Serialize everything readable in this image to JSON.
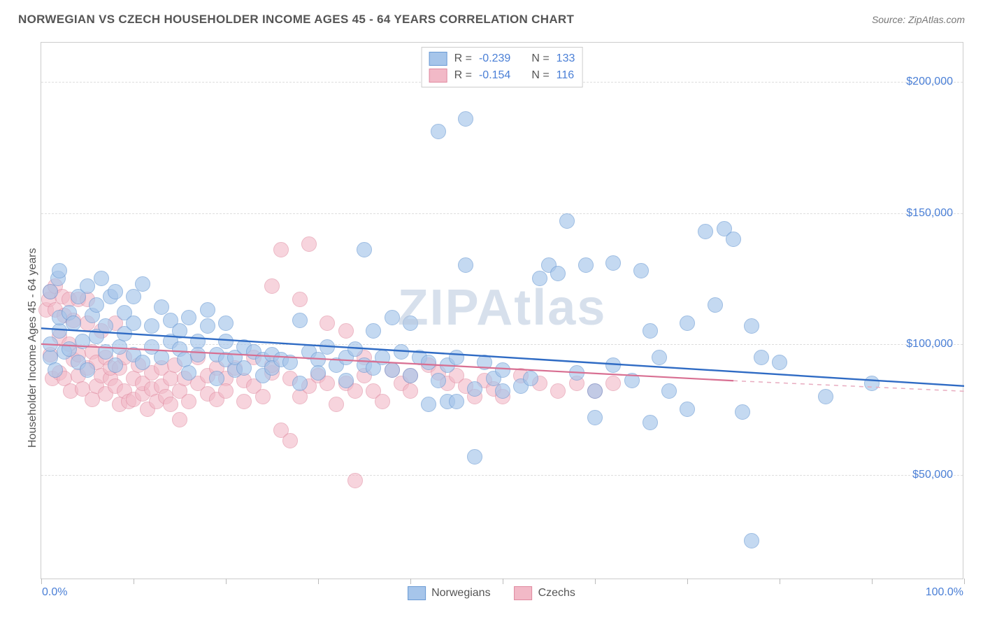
{
  "header": {
    "title": "NORWEGIAN VS CZECH HOUSEHOLDER INCOME AGES 45 - 64 YEARS CORRELATION CHART",
    "source": "Source: ZipAtlas.com"
  },
  "chart": {
    "type": "scatter",
    "watermark": "ZIPAtlas",
    "y_axis_title": "Householder Income Ages 45 - 64 years",
    "background_color": "#ffffff",
    "grid_color": "#dddddd",
    "border_color": "#cccccc",
    "label_color": "#4a7fd6",
    "axis_title_color": "#555555",
    "title_fontsize": 17,
    "label_fontsize": 16,
    "xlim": [
      0,
      100
    ],
    "ylim": [
      10000,
      215000
    ],
    "y_ticks": [
      50000,
      100000,
      150000,
      200000
    ],
    "y_tick_labels": [
      "$50,000",
      "$100,000",
      "$150,000",
      "$200,000"
    ],
    "x_ticks": [
      0,
      10,
      20,
      30,
      40,
      50,
      60,
      70,
      80,
      90,
      100
    ],
    "x_tick_labels": {
      "min": "0.0%",
      "max": "100.0%"
    },
    "marker_radius": 11,
    "series": [
      {
        "name": "Norwegians",
        "fill_color": "#a6c5ea",
        "stroke_color": "#6a9ad4",
        "fill_opacity": 0.65,
        "R": "-0.239",
        "N": "133",
        "trend": {
          "x1": 0,
          "y1": 106000,
          "x2": 100,
          "y2": 84000,
          "color": "#2f6bc4",
          "width": 2.4,
          "dash": "none"
        },
        "points": [
          [
            1,
            95000
          ],
          [
            1,
            100000
          ],
          [
            1,
            120000
          ],
          [
            1.5,
            90000
          ],
          [
            1.8,
            125000
          ],
          [
            2,
            105000
          ],
          [
            2,
            110000
          ],
          [
            2,
            128000
          ],
          [
            2.5,
            97000
          ],
          [
            3,
            112000
          ],
          [
            3,
            98000
          ],
          [
            3.5,
            108000
          ],
          [
            4,
            93000
          ],
          [
            4,
            118000
          ],
          [
            4.5,
            101000
          ],
          [
            5,
            122000
          ],
          [
            5,
            90000
          ],
          [
            5.5,
            111000
          ],
          [
            6,
            103000
          ],
          [
            6,
            115000
          ],
          [
            6.5,
            125000
          ],
          [
            7,
            97000
          ],
          [
            7,
            107000
          ],
          [
            7.5,
            118000
          ],
          [
            8,
            92000
          ],
          [
            8,
            120000
          ],
          [
            8.5,
            99000
          ],
          [
            9,
            112000
          ],
          [
            9,
            104000
          ],
          [
            10,
            108000
          ],
          [
            10,
            118000
          ],
          [
            10,
            96000
          ],
          [
            11,
            93000
          ],
          [
            11,
            123000
          ],
          [
            12,
            99000
          ],
          [
            12,
            107000
          ],
          [
            13,
            114000
          ],
          [
            13,
            95000
          ],
          [
            14,
            101000
          ],
          [
            14,
            109000
          ],
          [
            15,
            105000
          ],
          [
            15,
            98000
          ],
          [
            15.5,
            94000
          ],
          [
            16,
            110000
          ],
          [
            16,
            89000
          ],
          [
            17,
            101000
          ],
          [
            17,
            96000
          ],
          [
            18,
            107000
          ],
          [
            18,
            113000
          ],
          [
            19,
            96000
          ],
          [
            19,
            87000
          ],
          [
            20,
            94000
          ],
          [
            20,
            101000
          ],
          [
            20,
            108000
          ],
          [
            21,
            90000
          ],
          [
            21,
            95000
          ],
          [
            22,
            99000
          ],
          [
            22,
            91000
          ],
          [
            23,
            97000
          ],
          [
            24,
            94000
          ],
          [
            24,
            88000
          ],
          [
            25,
            96000
          ],
          [
            25,
            91000
          ],
          [
            26,
            94000
          ],
          [
            27,
            93000
          ],
          [
            28,
            109000
          ],
          [
            28,
            85000
          ],
          [
            29,
            97000
          ],
          [
            30,
            94000
          ],
          [
            30,
            89000
          ],
          [
            31,
            99000
          ],
          [
            32,
            92000
          ],
          [
            33,
            95000
          ],
          [
            33,
            86000
          ],
          [
            34,
            98000
          ],
          [
            35,
            136000
          ],
          [
            35,
            92000
          ],
          [
            36,
            105000
          ],
          [
            36,
            91000
          ],
          [
            37,
            95000
          ],
          [
            38,
            90000
          ],
          [
            38,
            110000
          ],
          [
            39,
            97000
          ],
          [
            40,
            108000
          ],
          [
            40,
            88000
          ],
          [
            41,
            95000
          ],
          [
            42,
            93000
          ],
          [
            42,
            77000
          ],
          [
            43,
            181000
          ],
          [
            43,
            86000
          ],
          [
            44,
            92000
          ],
          [
            44,
            78000
          ],
          [
            45,
            95000
          ],
          [
            45,
            78000
          ],
          [
            46,
            186000
          ],
          [
            46,
            130000
          ],
          [
            47,
            83000
          ],
          [
            47,
            57000
          ],
          [
            48,
            93000
          ],
          [
            49,
            87000
          ],
          [
            50,
            90000
          ],
          [
            50,
            82000
          ],
          [
            52,
            84000
          ],
          [
            53,
            87000
          ],
          [
            54,
            125000
          ],
          [
            55,
            130000
          ],
          [
            56,
            127000
          ],
          [
            57,
            147000
          ],
          [
            58,
            89000
          ],
          [
            59,
            130000
          ],
          [
            60,
            82000
          ],
          [
            60,
            72000
          ],
          [
            62,
            131000
          ],
          [
            62,
            92000
          ],
          [
            64,
            86000
          ],
          [
            65,
            128000
          ],
          [
            66,
            105000
          ],
          [
            66,
            70000
          ],
          [
            67,
            95000
          ],
          [
            68,
            82000
          ],
          [
            70,
            108000
          ],
          [
            70,
            75000
          ],
          [
            72,
            143000
          ],
          [
            73,
            115000
          ],
          [
            74,
            144000
          ],
          [
            75,
            140000
          ],
          [
            76,
            74000
          ],
          [
            77,
            107000
          ],
          [
            77,
            25000
          ],
          [
            78,
            95000
          ],
          [
            80,
            93000
          ],
          [
            85,
            80000
          ],
          [
            90,
            85000
          ]
        ]
      },
      {
        "name": "Czechs",
        "fill_color": "#f2b9c7",
        "stroke_color": "#e08aa0",
        "fill_opacity": 0.6,
        "R": "-0.154",
        "N": "116",
        "trend_solid": {
          "x1": 0,
          "y1": 100000,
          "x2": 75,
          "y2": 86000,
          "color": "#d86f92",
          "width": 2.2
        },
        "trend_dashed": {
          "x1": 75,
          "y1": 86000,
          "x2": 100,
          "y2": 82000,
          "color": "#e8acc0",
          "width": 1.5
        },
        "points": [
          [
            0.5,
            113000
          ],
          [
            0.8,
            117000
          ],
          [
            1,
            96000
          ],
          [
            1,
            120000
          ],
          [
            1.2,
            87000
          ],
          [
            1.5,
            122000
          ],
          [
            1.5,
            113000
          ],
          [
            2,
            89000
          ],
          [
            2,
            103000
          ],
          [
            2.3,
            118000
          ],
          [
            2.5,
            87000
          ],
          [
            2.5,
            111000
          ],
          [
            3,
            100000
          ],
          [
            3,
            117000
          ],
          [
            3.2,
            82000
          ],
          [
            3.5,
            94000
          ],
          [
            3.5,
            109000
          ],
          [
            4,
            88000
          ],
          [
            4,
            96000
          ],
          [
            4,
            117000
          ],
          [
            4.5,
            83000
          ],
          [
            5,
            91000
          ],
          [
            5,
            108000
          ],
          [
            5,
            117000
          ],
          [
            5.5,
            79000
          ],
          [
            5.5,
            97000
          ],
          [
            6,
            84000
          ],
          [
            6,
            93000
          ],
          [
            6.5,
            88000
          ],
          [
            6.5,
            105000
          ],
          [
            7,
            81000
          ],
          [
            7,
            95000
          ],
          [
            7.5,
            87000
          ],
          [
            7.5,
            91000
          ],
          [
            8,
            84000
          ],
          [
            8,
            108000
          ],
          [
            8.5,
            77000
          ],
          [
            8.5,
            91000
          ],
          [
            9,
            82000
          ],
          [
            9,
            95000
          ],
          [
            9.5,
            78000
          ],
          [
            10,
            87000
          ],
          [
            10,
            79000
          ],
          [
            10.5,
            92000
          ],
          [
            11,
            81000
          ],
          [
            11,
            85000
          ],
          [
            11.5,
            75000
          ],
          [
            12,
            83000
          ],
          [
            12,
            89000
          ],
          [
            12.5,
            78000
          ],
          [
            13,
            84000
          ],
          [
            13,
            91000
          ],
          [
            13.5,
            80000
          ],
          [
            14,
            77000
          ],
          [
            14,
            87000
          ],
          [
            14.5,
            92000
          ],
          [
            15,
            82000
          ],
          [
            15,
            71000
          ],
          [
            15.5,
            87000
          ],
          [
            16,
            78000
          ],
          [
            17,
            85000
          ],
          [
            17,
            95000
          ],
          [
            18,
            81000
          ],
          [
            18,
            88000
          ],
          [
            19,
            91000
          ],
          [
            19,
            79000
          ],
          [
            20,
            87000
          ],
          [
            20,
            82000
          ],
          [
            21,
            91000
          ],
          [
            22,
            86000
          ],
          [
            22,
            78000
          ],
          [
            23,
            84000
          ],
          [
            23,
            95000
          ],
          [
            24,
            80000
          ],
          [
            25,
            89000
          ],
          [
            25,
            92000
          ],
          [
            25,
            122000
          ],
          [
            26,
            136000
          ],
          [
            26,
            67000
          ],
          [
            27,
            87000
          ],
          [
            27,
            63000
          ],
          [
            28,
            117000
          ],
          [
            28,
            80000
          ],
          [
            29,
            84000
          ],
          [
            29,
            138000
          ],
          [
            30,
            88000
          ],
          [
            31,
            85000
          ],
          [
            31,
            108000
          ],
          [
            32,
            77000
          ],
          [
            33,
            85000
          ],
          [
            33,
            105000
          ],
          [
            34,
            82000
          ],
          [
            34,
            48000
          ],
          [
            35,
            88000
          ],
          [
            35,
            95000
          ],
          [
            36,
            82000
          ],
          [
            37,
            78000
          ],
          [
            38,
            90000
          ],
          [
            39,
            85000
          ],
          [
            40,
            88000
          ],
          [
            40,
            82000
          ],
          [
            42,
            92000
          ],
          [
            43,
            89000
          ],
          [
            44,
            85000
          ],
          [
            45,
            88000
          ],
          [
            46,
            84000
          ],
          [
            47,
            80000
          ],
          [
            48,
            86000
          ],
          [
            49,
            83000
          ],
          [
            50,
            80000
          ],
          [
            52,
            88000
          ],
          [
            54,
            85000
          ],
          [
            56,
            82000
          ],
          [
            58,
            85000
          ],
          [
            60,
            82000
          ],
          [
            62,
            85000
          ]
        ]
      }
    ],
    "legend_bottom": [
      {
        "label": "Norwegians"
      },
      {
        "label": "Czechs"
      }
    ]
  }
}
